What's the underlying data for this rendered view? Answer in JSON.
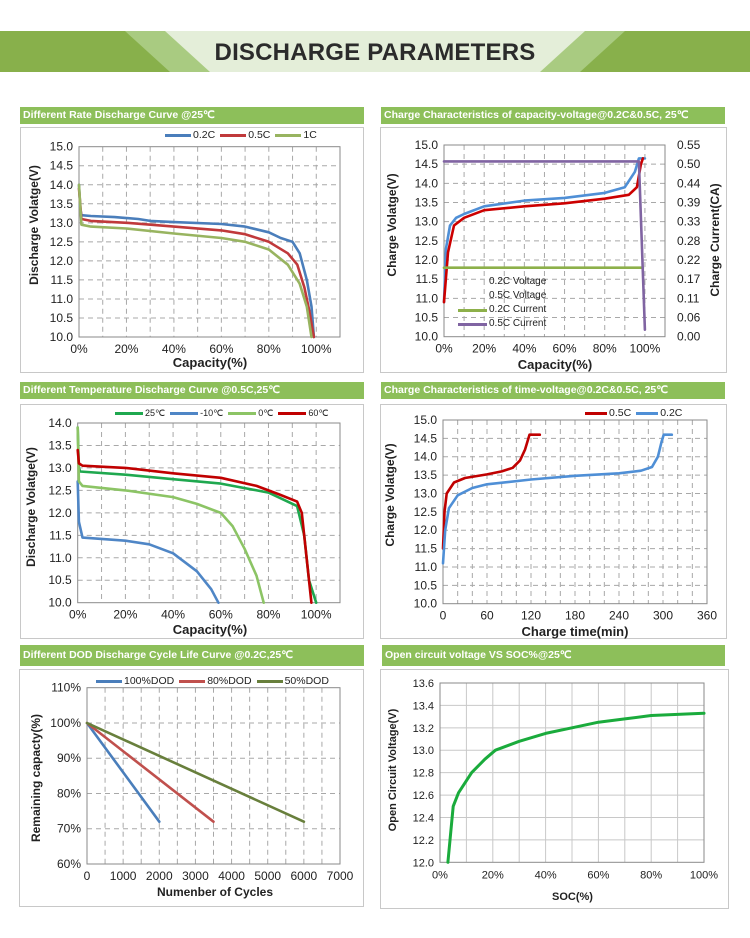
{
  "header": {
    "title": "DISCHARGE PARAMETERS",
    "colors": {
      "banner": "#88b04b",
      "banner_center": "#e4eed9",
      "panel_title": "#8dbf5a"
    }
  },
  "chart_data": [
    {
      "type": "line",
      "title": "Different Rate Discharge Curve @25℃",
      "xlabel": "Capacity(%)",
      "ylabel": "Discharge Volatge(V)",
      "xlim": [
        0,
        110
      ],
      "ylim": [
        10,
        15
      ],
      "xticks": [
        0,
        20,
        40,
        60,
        80,
        100
      ],
      "xtick_labels": [
        "0%",
        "20%",
        "40%",
        "60%",
        "80%",
        "100%"
      ],
      "yticks": [
        10.0,
        10.5,
        11.0,
        11.5,
        12.0,
        12.5,
        13.0,
        13.5,
        14.0,
        14.5,
        15.0
      ],
      "ytick_labels": [
        "10.0",
        "10.5",
        "11.0",
        "11.5",
        "12.0",
        "12.5",
        "13.0",
        "13.5",
        "14.0",
        "14.5",
        "15.0"
      ],
      "grid": true,
      "legend": "top",
      "series": [
        {
          "name": "0.2C",
          "color": "#4a7ebb",
          "points": [
            [
              0,
              14.0
            ],
            [
              0.5,
              13.4
            ],
            [
              1,
              13.2
            ],
            [
              5,
              13.18
            ],
            [
              15,
              13.15
            ],
            [
              25,
              13.1
            ],
            [
              30,
              13.05
            ],
            [
              40,
              13.02
            ],
            [
              60,
              12.97
            ],
            [
              70,
              12.9
            ],
            [
              80,
              12.75
            ],
            [
              85,
              12.6
            ],
            [
              90,
              12.5
            ],
            [
              93,
              12.2
            ],
            [
              96,
              11.5
            ],
            [
              98,
              10.8
            ],
            [
              99,
              10.0
            ]
          ]
        },
        {
          "name": "0.5C",
          "color": "#c0393b",
          "points": [
            [
              0,
              13.9
            ],
            [
              1,
              13.1
            ],
            [
              5,
              13.05
            ],
            [
              20,
              13.0
            ],
            [
              40,
              12.9
            ],
            [
              60,
              12.8
            ],
            [
              70,
              12.7
            ],
            [
              80,
              12.5
            ],
            [
              88,
              12.2
            ],
            [
              92,
              11.9
            ],
            [
              95,
              11.3
            ],
            [
              97,
              10.7
            ],
            [
              99,
              10.0
            ]
          ]
        },
        {
          "name": "1C",
          "color": "#98b460",
          "points": [
            [
              0,
              14.0
            ],
            [
              1,
              12.95
            ],
            [
              5,
              12.9
            ],
            [
              20,
              12.85
            ],
            [
              40,
              12.72
            ],
            [
              60,
              12.6
            ],
            [
              70,
              12.5
            ],
            [
              80,
              12.3
            ],
            [
              88,
              11.9
            ],
            [
              93,
              11.4
            ],
            [
              96,
              10.8
            ],
            [
              98,
              10.0
            ]
          ]
        }
      ]
    },
    {
      "type": "line",
      "title": "Charge  Characteristics of capacity-voltage@0.2C&0.5C, 25℃",
      "xlabel": "Capacity(%)",
      "ylabel": "Charge Volatge(V)",
      "y2label": "Charge Current(CA)",
      "xlim": [
        0,
        110
      ],
      "ylim": [
        10,
        15
      ],
      "y2lim": [
        0,
        0.55
      ],
      "xticks": [
        0,
        20,
        40,
        60,
        80,
        100
      ],
      "xtick_labels": [
        "0%",
        "20%",
        "40%",
        "60%",
        "80%",
        "100%"
      ],
      "yticks": [
        10.0,
        10.5,
        11.0,
        11.5,
        12.0,
        12.5,
        13.0,
        13.5,
        14.0,
        14.5,
        15.0
      ],
      "ytick_labels": [
        "10.0",
        "10.5",
        "11.0",
        "11.5",
        "12.0",
        "12.5",
        "13.0",
        "13.5",
        "14.0",
        "14.5",
        "15.0"
      ],
      "y2tick_labels": [
        "0.00",
        "0.06",
        "0.11",
        "0.17",
        "0.22",
        "0.28",
        "0.33",
        "0.39",
        "0.44",
        "0.50",
        "0.55"
      ],
      "grid": true,
      "legend": "bottom-left",
      "series": [
        {
          "name": "0.2C Voltage",
          "color": "#4f8fd6",
          "axis": "left",
          "show_swatch": false,
          "points": [
            [
              0,
              10.9
            ],
            [
              1,
              12.3
            ],
            [
              3,
              12.9
            ],
            [
              6,
              13.1
            ],
            [
              10,
              13.2
            ],
            [
              20,
              13.4
            ],
            [
              40,
              13.55
            ],
            [
              60,
              13.62
            ],
            [
              80,
              13.75
            ],
            [
              90,
              13.9
            ],
            [
              95,
              14.3
            ],
            [
              97,
              14.65
            ],
            [
              100,
              14.65
            ]
          ]
        },
        {
          "name": "0.5C Voltage",
          "color": "#cc0000",
          "axis": "left",
          "show_swatch": false,
          "points": [
            [
              0,
              10.9
            ],
            [
              2,
              12.2
            ],
            [
              5,
              12.9
            ],
            [
              10,
              13.1
            ],
            [
              20,
              13.3
            ],
            [
              40,
              13.4
            ],
            [
              60,
              13.48
            ],
            [
              80,
              13.6
            ],
            [
              92,
              13.7
            ],
            [
              96,
              13.9
            ],
            [
              98,
              14.5
            ],
            [
              99,
              14.65
            ]
          ]
        },
        {
          "name": "0.2C Current",
          "color": "#8db04a",
          "axis": "right",
          "show_swatch": true,
          "points": [
            [
              0,
              0.198
            ],
            [
              99,
              0.198
            ]
          ]
        },
        {
          "name": "0.5C Current",
          "color": "#8064a2",
          "axis": "right",
          "show_swatch": true,
          "points": [
            [
              0,
              0.503
            ],
            [
              97,
              0.503
            ],
            [
              100,
              0.02
            ]
          ]
        }
      ]
    },
    {
      "type": "line",
      "title": "Different Temperature Discharge Curve @0.5C,25℃",
      "xlabel": "Capacity(%)",
      "ylabel": "Discharge Volatge(V)",
      "xlim": [
        0,
        110
      ],
      "ylim": [
        10,
        14
      ],
      "xticks": [
        0,
        20,
        40,
        60,
        80,
        100
      ],
      "xtick_labels": [
        "0%",
        "20%",
        "40%",
        "60%",
        "80%",
        "100%"
      ],
      "yticks": [
        10.0,
        10.5,
        11.0,
        11.5,
        12.0,
        12.5,
        13.0,
        13.5,
        14.0
      ],
      "ytick_labels": [
        "10.0",
        "10.5",
        "11.0",
        "11.5",
        "12.0",
        "12.5",
        "13.0",
        "13.5",
        "14.0"
      ],
      "grid": true,
      "legend": "top",
      "series": [
        {
          "name": "25℃",
          "color": "#1fa84f",
          "points": [
            [
              0,
              13.9
            ],
            [
              0.5,
              13.0
            ],
            [
              1,
              12.92
            ],
            [
              20,
              12.85
            ],
            [
              40,
              12.75
            ],
            [
              60,
              12.65
            ],
            [
              80,
              12.45
            ],
            [
              92,
              12.15
            ],
            [
              95,
              11.5
            ],
            [
              97,
              10.5
            ],
            [
              100,
              10.0
            ]
          ]
        },
        {
          "name": "-10℃",
          "color": "#4f86c6",
          "points": [
            [
              0,
              12.7
            ],
            [
              0.5,
              11.8
            ],
            [
              2,
              11.45
            ],
            [
              10,
              11.42
            ],
            [
              20,
              11.38
            ],
            [
              30,
              11.3
            ],
            [
              40,
              11.1
            ],
            [
              50,
              10.7
            ],
            [
              56,
              10.3
            ],
            [
              59,
              10.0
            ]
          ]
        },
        {
          "name": "0℃",
          "color": "#8cc465",
          "points": [
            [
              0,
              13.9
            ],
            [
              0.5,
              12.7
            ],
            [
              2,
              12.6
            ],
            [
              20,
              12.5
            ],
            [
              40,
              12.35
            ],
            [
              50,
              12.2
            ],
            [
              60,
              12.0
            ],
            [
              65,
              11.7
            ],
            [
              70,
              11.2
            ],
            [
              75,
              10.6
            ],
            [
              78,
              10.0
            ]
          ]
        },
        {
          "name": "60℃",
          "color": "#c00000",
          "points": [
            [
              0,
              13.4
            ],
            [
              0.5,
              13.1
            ],
            [
              2,
              13.05
            ],
            [
              20,
              13.0
            ],
            [
              40,
              12.88
            ],
            [
              60,
              12.78
            ],
            [
              75,
              12.6
            ],
            [
              85,
              12.4
            ],
            [
              92,
              12.25
            ],
            [
              94,
              12.0
            ],
            [
              96,
              11.0
            ],
            [
              98,
              10.0
            ]
          ]
        }
      ]
    },
    {
      "type": "line",
      "title": "Charge  Characteristics of time-voltage@0.2C&0.5C, 25℃",
      "xlabel": "Charge time(min)",
      "ylabel": "Charge Volatge(V)",
      "xlim": [
        0,
        360
      ],
      "ylim": [
        10,
        15
      ],
      "xticks": [
        0,
        60,
        120,
        180,
        240,
        300,
        360
      ],
      "xtick_labels": [
        "0",
        "60",
        "120",
        "180",
        "240",
        "300",
        "360"
      ],
      "yticks": [
        10.0,
        10.5,
        11.0,
        11.5,
        12.0,
        12.5,
        13.0,
        13.5,
        14.0,
        14.5,
        15.0
      ],
      "ytick_labels": [
        "10.0",
        "10.5",
        "11.0",
        "11.5",
        "12.0",
        "12.5",
        "13.0",
        "13.5",
        "14.0",
        "14.5",
        "15.0"
      ],
      "grid": true,
      "legend": "top-right",
      "series": [
        {
          "name": "0.5C",
          "color": "#c00000",
          "points": [
            [
              0,
              11.5
            ],
            [
              2,
              12.5
            ],
            [
              5,
              13.0
            ],
            [
              15,
              13.3
            ],
            [
              30,
              13.42
            ],
            [
              60,
              13.52
            ],
            [
              80,
              13.6
            ],
            [
              95,
              13.7
            ],
            [
              105,
              13.9
            ],
            [
              112,
              14.2
            ],
            [
              118,
              14.6
            ],
            [
              132,
              14.6
            ]
          ]
        },
        {
          "name": "0.2C",
          "color": "#4f8fd6",
          "points": [
            [
              0,
              11.1
            ],
            [
              3,
              12.0
            ],
            [
              8,
              12.6
            ],
            [
              20,
              12.95
            ],
            [
              40,
              13.15
            ],
            [
              60,
              13.25
            ],
            [
              120,
              13.38
            ],
            [
              180,
              13.48
            ],
            [
              240,
              13.55
            ],
            [
              270,
              13.62
            ],
            [
              285,
              13.72
            ],
            [
              293,
              14.0
            ],
            [
              298,
              14.4
            ],
            [
              301,
              14.6
            ],
            [
              312,
              14.6
            ]
          ]
        }
      ]
    },
    {
      "type": "line",
      "title": "Different DOD Discharge Cycle Life Curve @0.2C,25℃",
      "xlabel": "Numenber of Cycles",
      "ylabel": "Remaining capacty(%)",
      "xlim": [
        0,
        7000
      ],
      "ylim": [
        60,
        110
      ],
      "xticks": [
        0,
        1000,
        2000,
        3000,
        4000,
        5000,
        6000,
        7000
      ],
      "xtick_labels": [
        "0",
        "1000",
        "2000",
        "3000",
        "4000",
        "5000",
        "6000",
        "7000"
      ],
      "yticks": [
        60,
        70,
        80,
        90,
        100,
        110
      ],
      "ytick_labels": [
        "60%",
        "70%",
        "80%",
        "90%",
        "100%",
        "110%"
      ],
      "grid": true,
      "legend": "top",
      "series": [
        {
          "name": "100%DOD",
          "color": "#4a7ebb",
          "points": [
            [
              0,
              100
            ],
            [
              2000,
              72
            ]
          ]
        },
        {
          "name": "80%DOD",
          "color": "#c0504d",
          "points": [
            [
              0,
              100
            ],
            [
              3500,
              72
            ]
          ]
        },
        {
          "name": "50%DOD",
          "color": "#687f3c",
          "points": [
            [
              0,
              100
            ],
            [
              6000,
              72
            ]
          ]
        }
      ]
    },
    {
      "type": "line",
      "title": "Open circuit voltage VS  SOC%@25℃",
      "xlabel": "SOC(%)",
      "ylabel": "Open Circuit Voltage(V)",
      "xlim": [
        0,
        100
      ],
      "ylim": [
        12.0,
        13.6
      ],
      "xticks": [
        0,
        20,
        40,
        60,
        80,
        100
      ],
      "xtick_labels": [
        "0%",
        "20%",
        "40%",
        "60%",
        "80%",
        "100%"
      ],
      "yticks": [
        12.0,
        12.2,
        12.4,
        12.6,
        12.8,
        13.0,
        13.2,
        13.4,
        13.6
      ],
      "ytick_labels": [
        "12.0",
        "12.2",
        "12.4",
        "12.6",
        "12.8",
        "13.0",
        "13.2",
        "13.4",
        "13.6"
      ],
      "grid": true,
      "legend": "none",
      "series": [
        {
          "color": "#1aab3c",
          "points": [
            [
              3,
              12.0
            ],
            [
              5,
              12.5
            ],
            [
              7,
              12.62
            ],
            [
              12,
              12.8
            ],
            [
              17,
              12.92
            ],
            [
              21,
              13.0
            ],
            [
              30,
              13.08
            ],
            [
              40,
              13.15
            ],
            [
              50,
              13.2
            ],
            [
              60,
              13.25
            ],
            [
              70,
              13.28
            ],
            [
              80,
              13.31
            ],
            [
              100,
              13.33
            ]
          ]
        }
      ]
    }
  ]
}
